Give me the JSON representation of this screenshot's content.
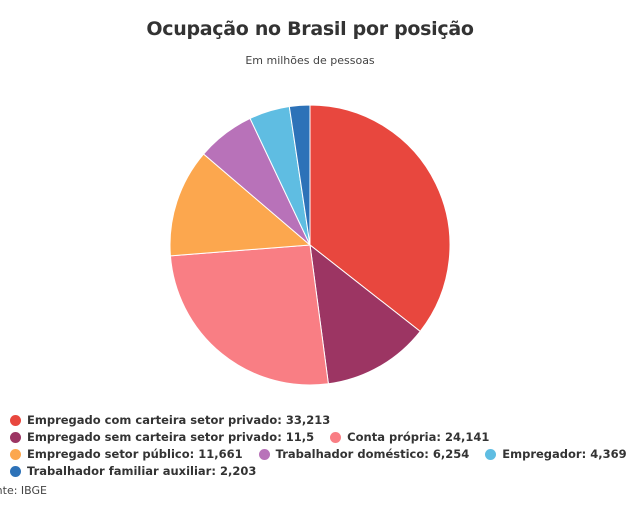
{
  "chart_data": {
    "type": "pie",
    "title": "Ocupação no Brasil por posição",
    "subtitle": "Em milhões de pessoas",
    "categories": [
      "Empregado com carteira setor privado",
      "Empregado sem carteira setor privado",
      "Conta própria",
      "Empregado setor público",
      "Trabalhador doméstico",
      "Empregador",
      "Trabalhador familiar auxiliar"
    ],
    "values": [
      33.213,
      11.5,
      24.141,
      11.661,
      6.254,
      4.369,
      2.203
    ],
    "value_labels": [
      "33,213",
      "11,5",
      "24,141",
      "11,661",
      "6,254",
      "4,369",
      "2,203"
    ],
    "colors": [
      "#e8473e",
      "#9c3563",
      "#f97e84",
      "#fca74e",
      "#b872b9",
      "#5fbde2",
      "#2d72b8"
    ],
    "source": "Fonte: IBGE"
  }
}
